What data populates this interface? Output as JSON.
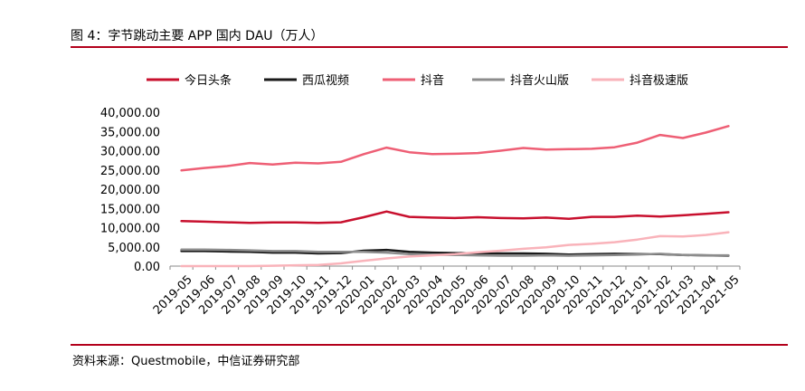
{
  "figure": {
    "title": "图 4：字节跳动主要 APP 国内 DAU（万人）",
    "source": "资料来源：Questmobile，中信证券研究部"
  },
  "chart_data": {
    "type": "line",
    "title": "图 4：字节跳动主要 APP 国内 DAU（万人）",
    "xlabel": "",
    "ylabel": "",
    "ylim": [
      0,
      40000
    ],
    "yticks": [
      "0.00",
      "5,000.00",
      "10,000.00",
      "15,000.00",
      "20,000.00",
      "25,000.00",
      "30,000.00",
      "35,000.00",
      "40,000.00"
    ],
    "categories": [
      "2019-05",
      "2019-06",
      "2019-07",
      "2019-08",
      "2019-09",
      "2019-10",
      "2019-11",
      "2019-12",
      "2020-01",
      "2020-02",
      "2020-03",
      "2020-04",
      "2020-05",
      "2020-06",
      "2020-07",
      "2020-08",
      "2020-09",
      "2020-10",
      "2020-11",
      "2020-12",
      "2021-01",
      "2021-02",
      "2021-03",
      "2021-04",
      "2021-05"
    ],
    "legend_position": "top",
    "series": [
      {
        "name": "今日头条",
        "color": "#c8102e",
        "values": [
          11700,
          11550,
          11400,
          11250,
          11350,
          11350,
          11250,
          11400,
          12700,
          14200,
          12800,
          12600,
          12500,
          12700,
          12500,
          12400,
          12600,
          12300,
          12800,
          12800,
          13100,
          12900,
          13200,
          13600,
          14000
        ]
      },
      {
        "name": "西瓜视频",
        "color": "#1a1a1a",
        "values": [
          3900,
          3900,
          3800,
          3700,
          3500,
          3500,
          3300,
          3400,
          4000,
          4200,
          3700,
          3500,
          3400,
          3300,
          3300,
          3300,
          3200,
          3000,
          3100,
          3200,
          3100,
          3100,
          2900,
          2800,
          2700
        ]
      },
      {
        "name": "抖音",
        "color": "#ee5f75",
        "values": [
          24900,
          25500,
          26000,
          26800,
          26400,
          26900,
          26700,
          27100,
          29100,
          30800,
          29600,
          29100,
          29200,
          29400,
          30000,
          30700,
          30300,
          30400,
          30500,
          30900,
          32100,
          34100,
          33300,
          34700,
          36400
        ]
      },
      {
        "name": "抖音火山版",
        "color": "#8c8c8c",
        "values": [
          4300,
          4300,
          4200,
          4100,
          3900,
          3900,
          3700,
          3700,
          3700,
          3500,
          3100,
          3000,
          2900,
          2800,
          2700,
          2700,
          2800,
          2700,
          2800,
          2900,
          3000,
          3200,
          2900,
          2800,
          2800
        ]
      },
      {
        "name": "抖音极速版",
        "color": "#f9b3ba",
        "values": [
          0,
          0,
          0,
          0,
          100,
          200,
          300,
          700,
          1400,
          2000,
          2500,
          2800,
          3100,
          3600,
          4000,
          4500,
          4900,
          5500,
          5800,
          6200,
          6900,
          7800,
          7700,
          8100,
          8800
        ]
      }
    ]
  }
}
